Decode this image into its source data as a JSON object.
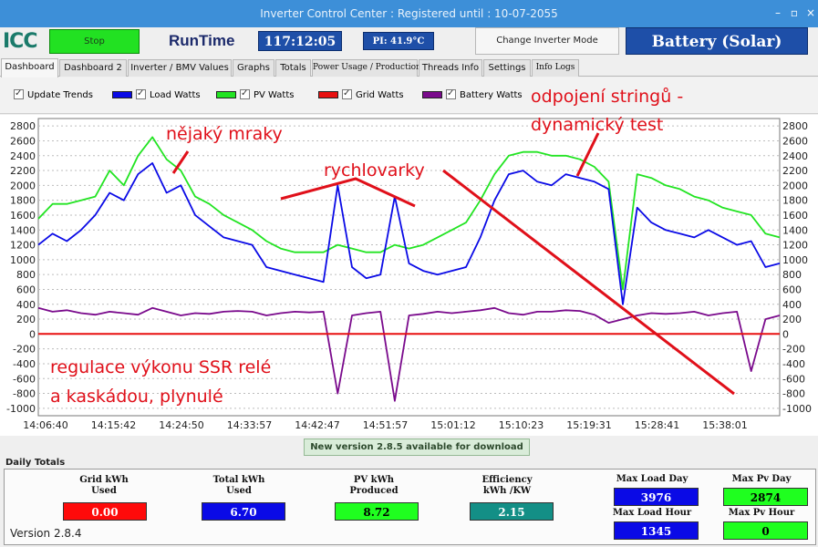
{
  "window": {
    "title": "Inverter Control Center : Registered until : 10-07-2055",
    "min_glyph": "–",
    "max_glyph": "▫",
    "close_glyph": "×"
  },
  "topbar": {
    "logo": "ICC",
    "stop_label": "Stop",
    "runtime_label": "RunTime",
    "runtime_value": "117:12:05",
    "pi_temp": "PI: 41.9°C",
    "change_mode_label": "Change Inverter Mode",
    "mode_value": "Battery (Solar)"
  },
  "tabs": [
    {
      "label": "Dashboard",
      "active": true
    },
    {
      "label": "Dashboard 2"
    },
    {
      "label": "Inverter / BMV Values"
    },
    {
      "label": "Graphs"
    },
    {
      "label": "Totals"
    },
    {
      "label": "Power Usage / Production"
    },
    {
      "label": "Threads Info"
    },
    {
      "label": "Settings"
    },
    {
      "label": "Info Logs"
    }
  ],
  "legend": {
    "update_trends": "Update Trends",
    "load": "Load Watts",
    "pv": "PV Watts",
    "grid": "Grid Watts",
    "battery": "Battery Watts"
  },
  "colors": {
    "load": "#0a0ae6",
    "pv": "#22e422",
    "grid": "#e81010",
    "battery": "#7a0a8c",
    "annotation": "#e0101a"
  },
  "annotations": {
    "clouds": "nějaký mraky",
    "kettles": "rychlovarky",
    "strings_1": "odpojení stringů -",
    "strings_2": "dynamický test",
    "ssr_1": "regulace výkonu SSR relé",
    "ssr_2": "a kaskádou, plynulé"
  },
  "chart_data": {
    "type": "line",
    "title": "",
    "xlabel": "",
    "ylabel": "",
    "ylim": [
      -1100,
      2900
    ],
    "yticks": [
      -1000,
      -800,
      -600,
      -400,
      -200,
      0,
      200,
      400,
      600,
      800,
      1000,
      1200,
      1400,
      1600,
      1800,
      2000,
      2200,
      2400,
      2600,
      2800
    ],
    "xtick_labels": [
      "14:06:40",
      "14:15:42",
      "14:24:50",
      "14:33:57",
      "14:42:47",
      "14:51:57",
      "15:01:12",
      "15:10:23",
      "15:19:31",
      "15:28:41",
      "15:38:01"
    ],
    "grid": true,
    "legend_position": "top",
    "x": [
      "14:06:40",
      "14:08:30",
      "14:10:20",
      "14:12:10",
      "14:14:00",
      "14:15:42",
      "14:17:30",
      "14:19:20",
      "14:21:10",
      "14:23:00",
      "14:24:50",
      "14:26:40",
      "14:28:30",
      "14:30:20",
      "14:32:10",
      "14:33:57",
      "14:35:45",
      "14:37:30",
      "14:39:15",
      "14:41:00",
      "14:42:47",
      "14:44:35",
      "14:46:25",
      "14:48:15",
      "14:50:05",
      "14:51:57",
      "14:53:50",
      "14:55:40",
      "14:57:30",
      "14:59:20",
      "15:01:12",
      "15:03:00",
      "15:04:50",
      "15:06:40",
      "15:08:30",
      "15:10:23",
      "15:12:10",
      "15:14:00",
      "15:15:50",
      "15:17:40",
      "15:19:31",
      "15:21:20",
      "15:23:10",
      "15:25:00",
      "15:26:50",
      "15:28:41",
      "15:30:30",
      "15:32:20",
      "15:34:10",
      "15:36:05",
      "15:38:01",
      "15:39:50",
      "15:41:40"
    ],
    "series": [
      {
        "name": "Load Watts",
        "values": [
          1200,
          1350,
          1250,
          1400,
          1600,
          1900,
          1800,
          2150,
          2300,
          1900,
          2000,
          1600,
          1450,
          1300,
          1250,
          1200,
          900,
          850,
          800,
          750,
          700,
          2000,
          900,
          750,
          800,
          1850,
          950,
          850,
          800,
          850,
          900,
          1300,
          1800,
          2150,
          2200,
          2050,
          2000,
          2150,
          2100,
          2050,
          1950,
          400,
          1700,
          1500,
          1400,
          1350,
          1300,
          1400,
          1300,
          1200,
          1250,
          900,
          950
        ]
      },
      {
        "name": "PV Watts",
        "values": [
          1550,
          1750,
          1750,
          1800,
          1850,
          2200,
          2000,
          2400,
          2650,
          2350,
          2200,
          1850,
          1750,
          1600,
          1500,
          1400,
          1250,
          1150,
          1100,
          1100,
          1100,
          1200,
          1150,
          1100,
          1100,
          1200,
          1150,
          1200,
          1300,
          1400,
          1500,
          1800,
          2150,
          2400,
          2450,
          2450,
          2400,
          2400,
          2350,
          2250,
          2050,
          600,
          2150,
          2100,
          2000,
          1950,
          1850,
          1800,
          1700,
          1650,
          1600,
          1350,
          1300
        ]
      },
      {
        "name": "Grid Watts",
        "values": [
          0,
          0,
          0,
          0,
          0,
          0,
          0,
          0,
          0,
          0,
          0,
          0,
          0,
          0,
          0,
          0,
          0,
          0,
          0,
          0,
          0,
          0,
          0,
          0,
          0,
          0,
          0,
          0,
          0,
          0,
          0,
          0,
          0,
          0,
          0,
          0,
          0,
          0,
          0,
          0,
          0,
          0,
          0,
          0,
          0,
          0,
          0,
          0,
          0,
          0,
          0,
          0,
          0
        ]
      },
      {
        "name": "Battery Watts",
        "values": [
          350,
          300,
          320,
          280,
          260,
          300,
          280,
          260,
          350,
          300,
          250,
          280,
          270,
          300,
          310,
          300,
          250,
          280,
          300,
          290,
          300,
          -800,
          250,
          280,
          300,
          -900,
          250,
          270,
          300,
          280,
          300,
          320,
          350,
          280,
          260,
          300,
          300,
          320,
          310,
          260,
          150,
          200,
          250,
          280,
          270,
          280,
          300,
          250,
          280,
          300,
          -500,
          200,
          250
        ]
      }
    ]
  },
  "new_version_text": "New version 2.8.5 available for download",
  "daily": {
    "section_label": "Daily Totals",
    "grid_label": "Grid kWh\nUsed",
    "grid_value": "0.00",
    "total_label": "Total kWh\nUsed",
    "total_value": "6.70",
    "pv_label": "PV kWh\nProduced",
    "pv_value": "8.72",
    "eff_label": "Efficiency\nkWh /KW",
    "eff_value": "2.15",
    "max_load_day_label": "Max Load Day",
    "max_load_day_value": "3976",
    "max_pv_day_label": "Max Pv Day",
    "max_pv_day_value": "2874",
    "max_load_hour_label": "Max Load Hour",
    "max_load_hour_value": "1345",
    "max_pv_hour_label": "Max Pv Hour",
    "max_pv_hour_value": "0"
  },
  "version_label": "Version 2.8.4"
}
